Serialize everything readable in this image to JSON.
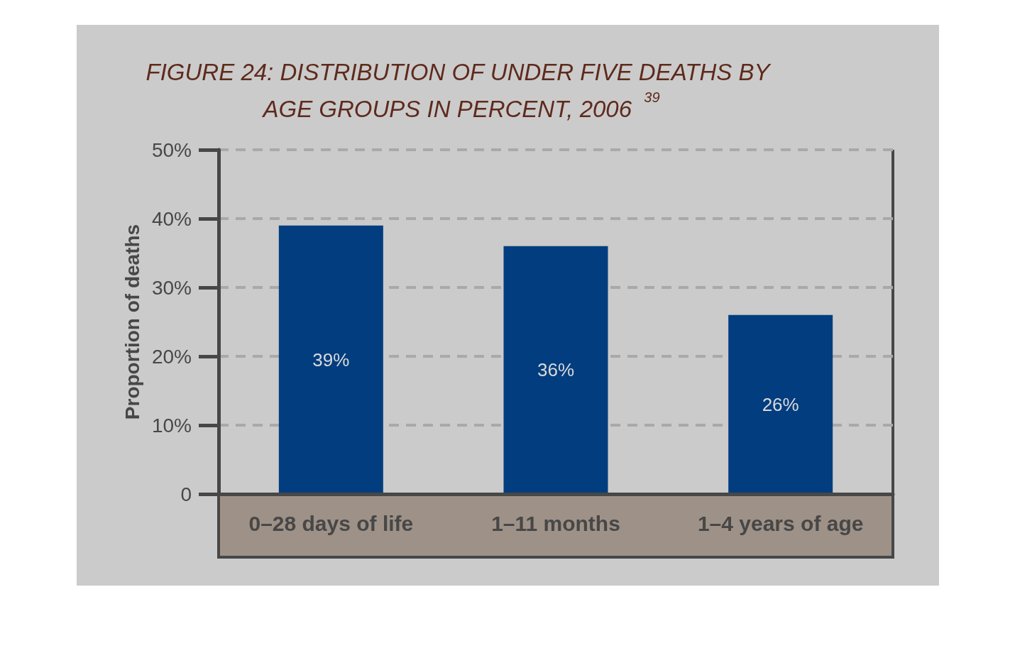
{
  "chart_data": {
    "type": "bar",
    "title": "FIGURE 24: DISTRIBUTION OF UNDER FIVE DEATHS BY AGE GROUPS IN PERCENT, 2006 $^{39}$",
    "ylabel": "Proportion of deaths",
    "categories": [
      "0–28 days of life",
      "1–11 months",
      "1–4 years of age"
    ],
    "values": [
      39,
      36,
      26
    ],
    "color": "#023d7f",
    "value_labels": [
      "39%",
      "36%",
      "26%"
    ],
    "ylim": [
      0,
      50
    ],
    "yticks": [
      0,
      {
        "value": 10,
        "label": "10%"
      },
      {
        "value": 20,
        "label": "20%"
      },
      {
        "value": 30,
        "label": "30%"
      },
      {
        "value": 40,
        "label": "40%"
      },
      {
        "value": 50,
        "label": "50%"
      }
    ],
    "grid": "y"
  }
}
